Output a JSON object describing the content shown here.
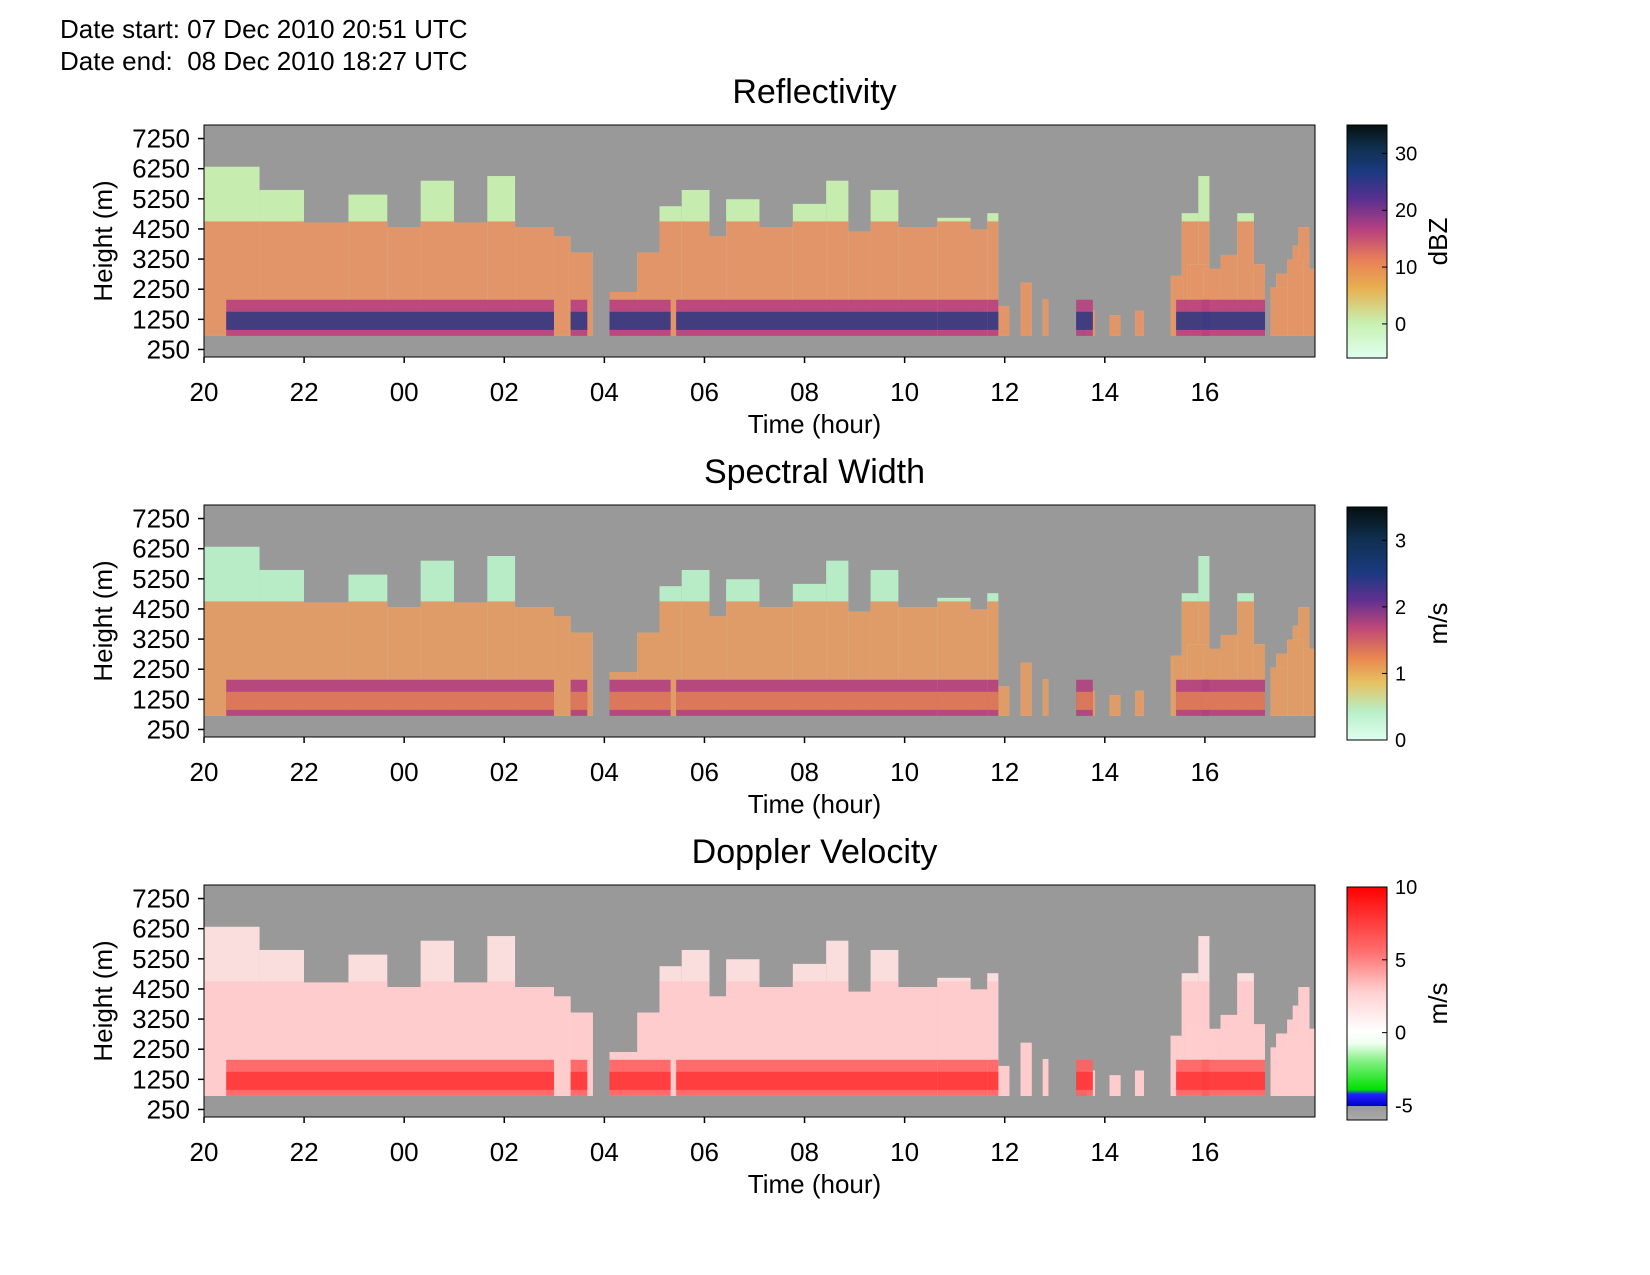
{
  "header": {
    "date_start": "Date start: 07 Dec 2010 20:51 UTC",
    "date_end": "Date end:  08 Dec 2010 18:27 UTC"
  },
  "chart_data": [
    {
      "type": "heatmap",
      "title": "Reflectivity",
      "xlabel": "Time (hour)",
      "ylabel": "Height (m)",
      "x_ticks": [
        "20",
        "22",
        "00",
        "02",
        "04",
        "06",
        "08",
        "10",
        "12",
        "14",
        "16"
      ],
      "y_ticks": [
        7250,
        6250,
        5250,
        4250,
        3250,
        2250,
        1250,
        250
      ],
      "ylim": [
        0,
        7700
      ],
      "colorbar": {
        "label": "dBZ",
        "ticks": [
          30,
          20,
          10,
          0
        ],
        "range": [
          -6,
          35
        ]
      },
      "background_color": "#999999"
    },
    {
      "type": "heatmap",
      "title": "Spectral Width",
      "xlabel": "Time (hour)",
      "ylabel": "Height (m)",
      "x_ticks": [
        "20",
        "22",
        "00",
        "02",
        "04",
        "06",
        "08",
        "10",
        "12",
        "14",
        "16"
      ],
      "y_ticks": [
        7250,
        6250,
        5250,
        4250,
        3250,
        2250,
        1250,
        250
      ],
      "ylim": [
        0,
        7700
      ],
      "colorbar": {
        "label": "m/s",
        "ticks": [
          3,
          2,
          1,
          0
        ],
        "range": [
          0,
          3.5
        ]
      },
      "background_color": "#999999"
    },
    {
      "type": "heatmap",
      "title": "Doppler Velocity",
      "xlabel": "Time (hour)",
      "ylabel": "Height (m)",
      "x_ticks": [
        "20",
        "22",
        "00",
        "02",
        "04",
        "06",
        "08",
        "10",
        "12",
        "14",
        "16"
      ],
      "y_ticks": [
        7250,
        6250,
        5250,
        4250,
        3250,
        2250,
        1250,
        250
      ],
      "ylim": [
        0,
        7700
      ],
      "colorbar": {
        "label": "m/s",
        "ticks": [
          10,
          5,
          0,
          -5
        ],
        "range": [
          -6,
          10
        ]
      },
      "background_color": "#999999"
    }
  ]
}
